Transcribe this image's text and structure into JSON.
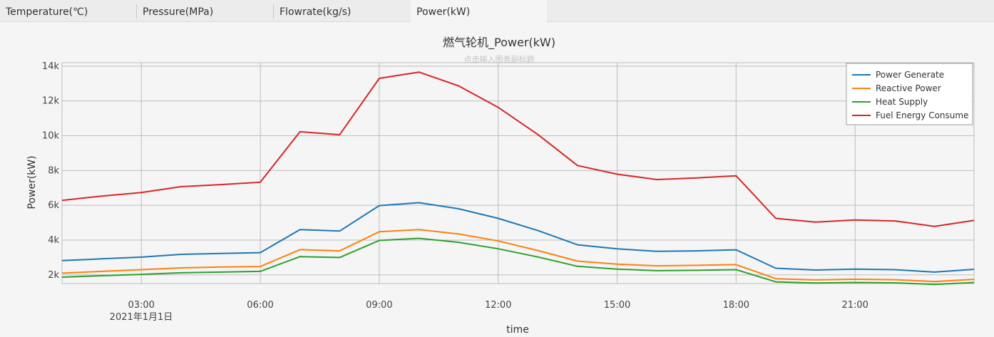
{
  "tabs": [
    {
      "label": "Temperature(℃)",
      "active": false
    },
    {
      "label": "Pressure(MPa)",
      "active": false
    },
    {
      "label": "Flowrate(kg/s)",
      "active": false
    },
    {
      "label": "Power(kW)",
      "active": true
    }
  ],
  "chart_data": {
    "type": "line",
    "title": "燃气轮机_Power(kW)",
    "subtitle": "点击输入图表副标题",
    "xlabel": "time",
    "ylabel": "Power(kW)",
    "x": [
      "01:00",
      "02:00",
      "03:00",
      "04:00",
      "05:00",
      "06:00",
      "07:00",
      "08:00",
      "09:00",
      "10:00",
      "11:00",
      "12:00",
      "13:00",
      "14:00",
      "15:00",
      "16:00",
      "17:00",
      "18:00",
      "19:00",
      "20:00",
      "21:00",
      "22:00",
      "23:00",
      "24:00"
    ],
    "x_ticks": [
      "03:00",
      "06:00",
      "09:00",
      "12:00",
      "15:00",
      "18:00",
      "21:00"
    ],
    "x_date_label": "2021年1月1日",
    "y_ticks": [
      "2k",
      "4k",
      "6k",
      "8k",
      "10k",
      "12k",
      "14k"
    ],
    "ylim": [
      1500,
      14200
    ],
    "grid": true,
    "legend_position": "top-right",
    "series": [
      {
        "name": "Power Generate",
        "color": "#1f77b4",
        "values": [
          2820,
          2920,
          3020,
          3180,
          3230,
          3280,
          4600,
          4520,
          5980,
          6150,
          5800,
          5250,
          4550,
          3730,
          3500,
          3350,
          3380,
          3440,
          2380,
          2280,
          2330,
          2300,
          2160,
          2320
        ]
      },
      {
        "name": "Reactive Power",
        "color": "#ff7f0e",
        "values": [
          2100,
          2200,
          2300,
          2400,
          2450,
          2480,
          3450,
          3380,
          4480,
          4600,
          4350,
          3950,
          3400,
          2790,
          2620,
          2520,
          2550,
          2590,
          1780,
          1710,
          1750,
          1720,
          1620,
          1740
        ]
      },
      {
        "name": "Heat Supply",
        "color": "#2ca02c",
        "values": [
          1870,
          1950,
          2030,
          2120,
          2160,
          2200,
          3050,
          3000,
          3980,
          4100,
          3870,
          3500,
          3030,
          2490,
          2330,
          2240,
          2260,
          2300,
          1600,
          1530,
          1560,
          1540,
          1450,
          1560
        ]
      },
      {
        "name": "Fuel Energy Consume",
        "color": "#d62728",
        "values": [
          6280,
          6530,
          6730,
          7070,
          7190,
          7330,
          10230,
          10060,
          13300,
          13660,
          12870,
          11630,
          10070,
          8290,
          7790,
          7480,
          7570,
          7700,
          5250,
          5030,
          5160,
          5100,
          4790,
          5130
        ]
      }
    ]
  }
}
